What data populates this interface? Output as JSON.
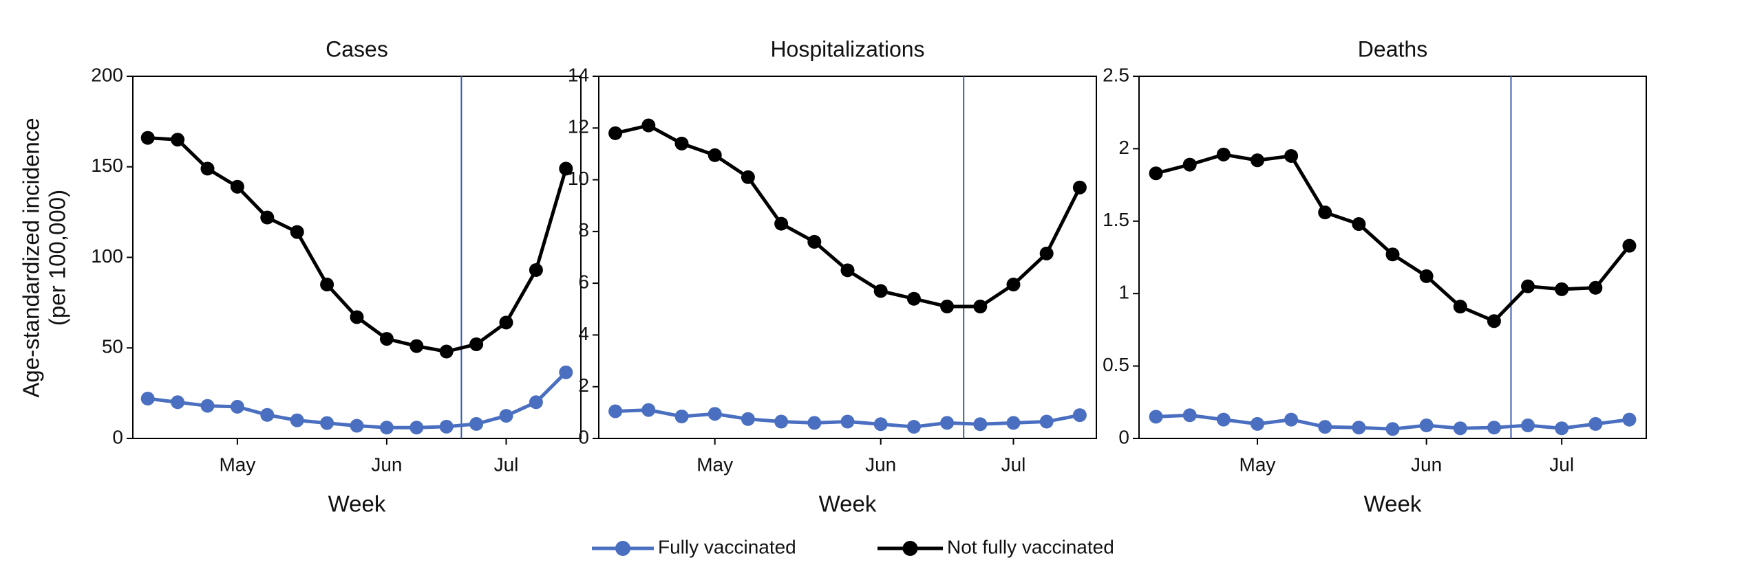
{
  "ylabel": [
    "Age-standardized incidence",
    "(per 100,000)"
  ],
  "chart_data": [
    {
      "type": "line",
      "title": "Cases",
      "xlabel": "Week",
      "categories": [
        null,
        null,
        null,
        "May",
        null,
        null,
        null,
        null,
        "Jun",
        null,
        null,
        null,
        "Jul",
        null,
        null
      ],
      "vline": 10.5,
      "ylim": [
        0,
        200
      ],
      "yticks": [
        0,
        50,
        100,
        150,
        200
      ],
      "series": [
        {
          "name": "Fully vaccinated",
          "color": "#4a6fc0",
          "values": [
            22,
            20,
            18,
            17.5,
            13,
            10,
            8.5,
            7,
            6,
            6,
            6.5,
            8,
            12.5,
            20,
            36.5
          ]
        },
        {
          "name": "Not fully vaccinated",
          "color": "#000000",
          "values": [
            166,
            165,
            149,
            139,
            122,
            114,
            85,
            67,
            55,
            51,
            48,
            52,
            64,
            93,
            149
          ]
        }
      ]
    },
    {
      "type": "line",
      "title": "Hospitalizations",
      "xlabel": "Week",
      "categories": [
        null,
        null,
        null,
        "May",
        null,
        null,
        null,
        null,
        "Jun",
        null,
        null,
        null,
        "Jul",
        null,
        null
      ],
      "vline": 10.5,
      "ylim": [
        0,
        14
      ],
      "yticks": [
        0,
        2,
        4,
        6,
        8,
        10,
        12,
        14
      ],
      "series": [
        {
          "color": "#4a6fc0",
          "values": [
            1.05,
            1.1,
            0.85,
            0.95,
            0.75,
            0.65,
            0.6,
            0.65,
            0.55,
            0.45,
            0.6,
            0.55,
            0.6,
            0.65,
            0.9
          ]
        },
        {
          "color": "#000000",
          "values": [
            11.8,
            12.1,
            11.4,
            10.95,
            10.1,
            8.3,
            7.6,
            6.5,
            5.7,
            5.4,
            5.1,
            5.1,
            5.95,
            7.15,
            9.7
          ]
        }
      ]
    },
    {
      "type": "line",
      "title": "Deaths",
      "xlabel": "Week",
      "categories": [
        null,
        null,
        null,
        "May",
        null,
        null,
        null,
        null,
        "Jun",
        null,
        null,
        null,
        "Jul",
        null,
        null
      ],
      "vline": 10.5,
      "ylim": [
        0,
        2.5
      ],
      "yticks": [
        0,
        0.5,
        1,
        1.5,
        2,
        2.5
      ],
      "series": [
        {
          "color": "#4a6fc0",
          "values": [
            0.15,
            0.16,
            0.13,
            0.1,
            0.13,
            0.08,
            0.075,
            0.065,
            0.09,
            0.07,
            0.075,
            0.09,
            0.07,
            0.1,
            0.13
          ]
        },
        {
          "color": "#000000",
          "values": [
            1.83,
            1.89,
            1.96,
            1.92,
            1.95,
            1.56,
            1.48,
            1.27,
            1.12,
            0.91,
            0.81,
            1.05,
            1.03,
            1.04,
            1.33
          ]
        }
      ]
    }
  ]
}
